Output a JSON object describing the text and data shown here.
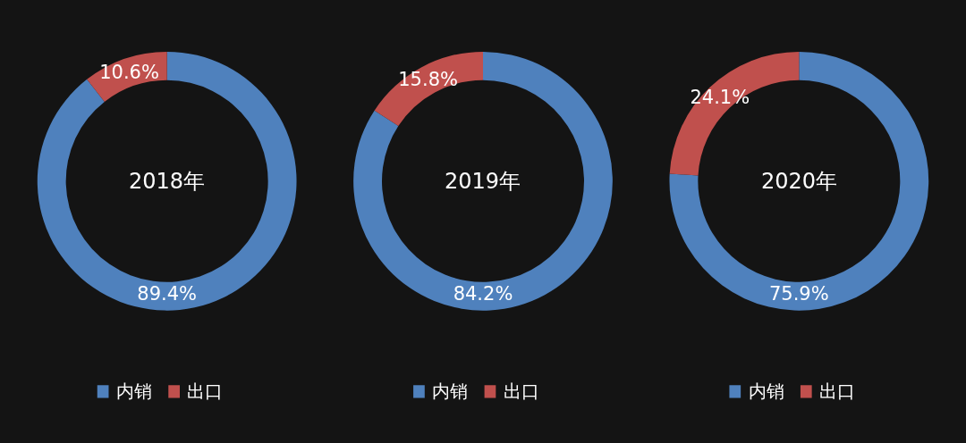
{
  "chart_data": [
    {
      "type": "donut",
      "title": "2018年",
      "categories": [
        "内销",
        "出口"
      ],
      "values": [
        89.4,
        10.6
      ],
      "value_labels": [
        "89.4%",
        "10.6%"
      ],
      "colors": [
        "#4f81bd",
        "#c0504d"
      ],
      "legend": "bottom"
    },
    {
      "type": "donut",
      "title": "2019年",
      "categories": [
        "内销",
        "出口"
      ],
      "values": [
        84.2,
        15.8
      ],
      "value_labels": [
        "84.2%",
        "15.8%"
      ],
      "colors": [
        "#4f81bd",
        "#c0504d"
      ],
      "legend": "bottom"
    },
    {
      "type": "donut",
      "title": "2020年",
      "categories": [
        "内销",
        "出口"
      ],
      "values": [
        75.9,
        24.1
      ],
      "value_labels": [
        "75.9%",
        "24.1%"
      ],
      "colors": [
        "#4f81bd",
        "#c0504d"
      ],
      "legend": "bottom"
    }
  ]
}
